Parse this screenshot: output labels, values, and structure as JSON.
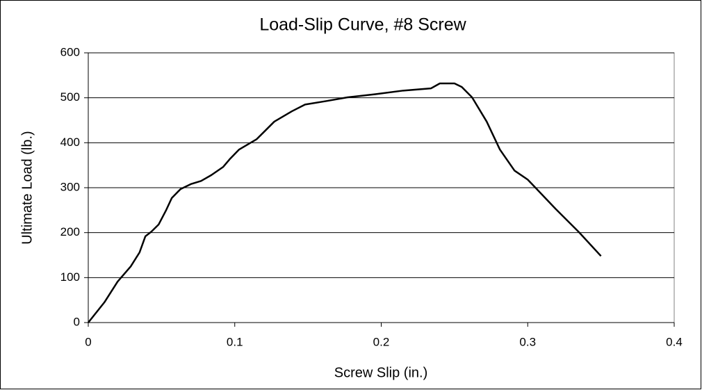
{
  "chart_data": {
    "type": "line",
    "title": "Load-Slip Curve, #8 Screw",
    "x_label": "Screw Slip (in.)",
    "y_label": "Ultimate Load (lb.)",
    "xlim": [
      0,
      0.4
    ],
    "xticks": [
      0,
      0.1,
      0.2,
      0.3,
      0.4
    ],
    "ylim": [
      0,
      600
    ],
    "yticks": [
      0,
      100,
      200,
      300,
      400,
      500,
      600
    ],
    "grid": true,
    "series": [
      {
        "name": "#8 Screw",
        "color": "#000000",
        "x": [
          0,
          0.011,
          0.02,
          0.029,
          0.035,
          0.039,
          0.043,
          0.048,
          0.053,
          0.057,
          0.063,
          0.07,
          0.077,
          0.084,
          0.092,
          0.097,
          0.103,
          0.115,
          0.127,
          0.139,
          0.148,
          0.163,
          0.177,
          0.196,
          0.215,
          0.234,
          0.24,
          0.25,
          0.255,
          0.262,
          0.272,
          0.281,
          0.291,
          0.3,
          0.319,
          0.335,
          0.35
        ],
        "values": [
          0,
          45,
          91,
          125,
          156,
          192,
          202,
          218,
          249,
          277,
          297,
          308,
          315,
          328,
          346,
          365,
          385,
          408,
          447,
          470,
          485,
          493,
          501,
          508,
          516,
          521,
          532,
          532,
          524,
          501,
          447,
          385,
          338,
          318,
          253,
          201,
          148
        ]
      }
    ]
  }
}
